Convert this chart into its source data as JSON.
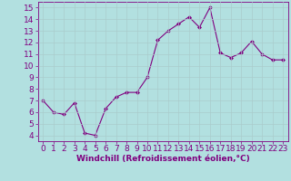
{
  "x": [
    0,
    1,
    2,
    3,
    4,
    5,
    6,
    7,
    8,
    9,
    10,
    11,
    12,
    13,
    14,
    15,
    16,
    17,
    18,
    19,
    20,
    21,
    22,
    23
  ],
  "y": [
    7.0,
    6.0,
    5.8,
    6.8,
    4.2,
    4.0,
    6.3,
    7.3,
    7.7,
    7.7,
    9.0,
    12.2,
    13.0,
    13.6,
    14.2,
    13.3,
    15.0,
    11.1,
    10.7,
    11.1,
    12.1,
    11.0,
    10.5,
    10.5
  ],
  "line_color": "#800080",
  "marker": "D",
  "marker_size": 2,
  "bg_color": "#b2e0e0",
  "grid_color": "#aacccc",
  "xlim": [
    -0.5,
    23.5
  ],
  "ylim": [
    3.5,
    15.5
  ],
  "yticks": [
    4,
    5,
    6,
    7,
    8,
    9,
    10,
    11,
    12,
    13,
    14,
    15
  ],
  "xticks": [
    0,
    1,
    2,
    3,
    4,
    5,
    6,
    7,
    8,
    9,
    10,
    11,
    12,
    13,
    14,
    15,
    16,
    17,
    18,
    19,
    20,
    21,
    22,
    23
  ],
  "xlabel": "Windchill (Refroidissement éolien,°C)",
  "xlabel_fontsize": 6.5,
  "tick_fontsize": 6.5
}
